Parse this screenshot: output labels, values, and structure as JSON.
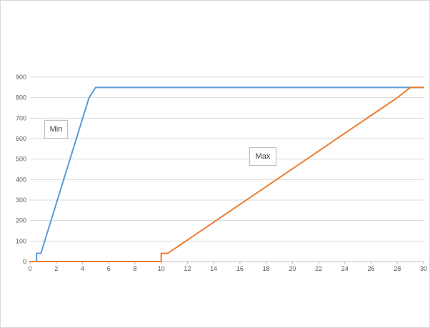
{
  "chart_data": {
    "type": "line",
    "title": "",
    "xlabel": "",
    "ylabel": "",
    "xlim": [
      0,
      30
    ],
    "ylim": [
      0,
      900
    ],
    "x_ticks": [
      0,
      2,
      4,
      6,
      8,
      10,
      12,
      14,
      16,
      18,
      20,
      22,
      24,
      26,
      28,
      30
    ],
    "y_ticks": [
      0,
      100,
      200,
      300,
      400,
      500,
      600,
      700,
      800,
      900
    ],
    "grid": "horizontal",
    "legend": "none",
    "annotations": [
      {
        "id": "min",
        "text": "Min"
      },
      {
        "id": "max",
        "text": "Max"
      }
    ],
    "series": [
      {
        "name": "Min",
        "color": "#5b9bd5",
        "points": [
          [
            0.5,
            0
          ],
          [
            0.5,
            40
          ],
          [
            0.83,
            40
          ],
          [
            4.5,
            800
          ],
          [
            5.0,
            850
          ],
          [
            30.0,
            850
          ]
        ]
      },
      {
        "name": "Max",
        "color": "#ed7d31",
        "points": [
          [
            0,
            0
          ],
          [
            10.0,
            0
          ],
          [
            10.0,
            40
          ],
          [
            10.5,
            40
          ],
          [
            28.0,
            800
          ],
          [
            29.0,
            850
          ],
          [
            30.0,
            850
          ]
        ]
      }
    ]
  }
}
